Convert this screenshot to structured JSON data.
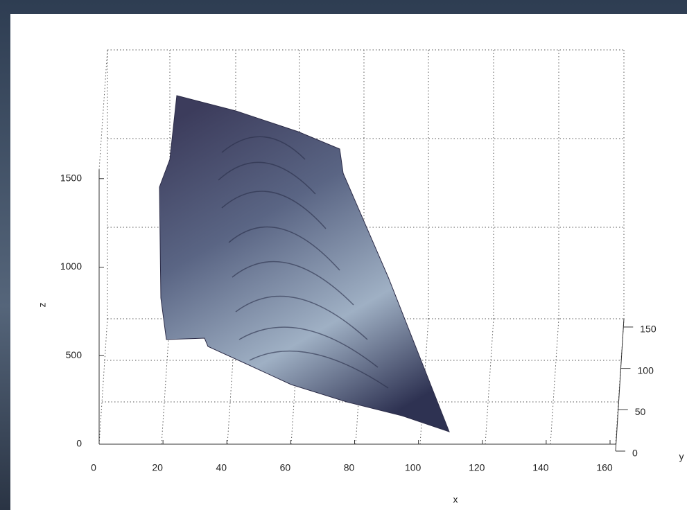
{
  "chart_data": {
    "type": "surface3d",
    "xlabel": "x",
    "ylabel": "y",
    "zlabel": "z",
    "xlim": [
      0,
      160
    ],
    "xticks": [
      0,
      20,
      40,
      60,
      80,
      100,
      120,
      140,
      160
    ],
    "ylim": [
      0,
      160
    ],
    "yticks": [
      0,
      50,
      100,
      150
    ],
    "zlim": [
      0,
      1550
    ],
    "zticks": [
      0,
      500,
      1000,
      1500
    ],
    "grid": true
  }
}
